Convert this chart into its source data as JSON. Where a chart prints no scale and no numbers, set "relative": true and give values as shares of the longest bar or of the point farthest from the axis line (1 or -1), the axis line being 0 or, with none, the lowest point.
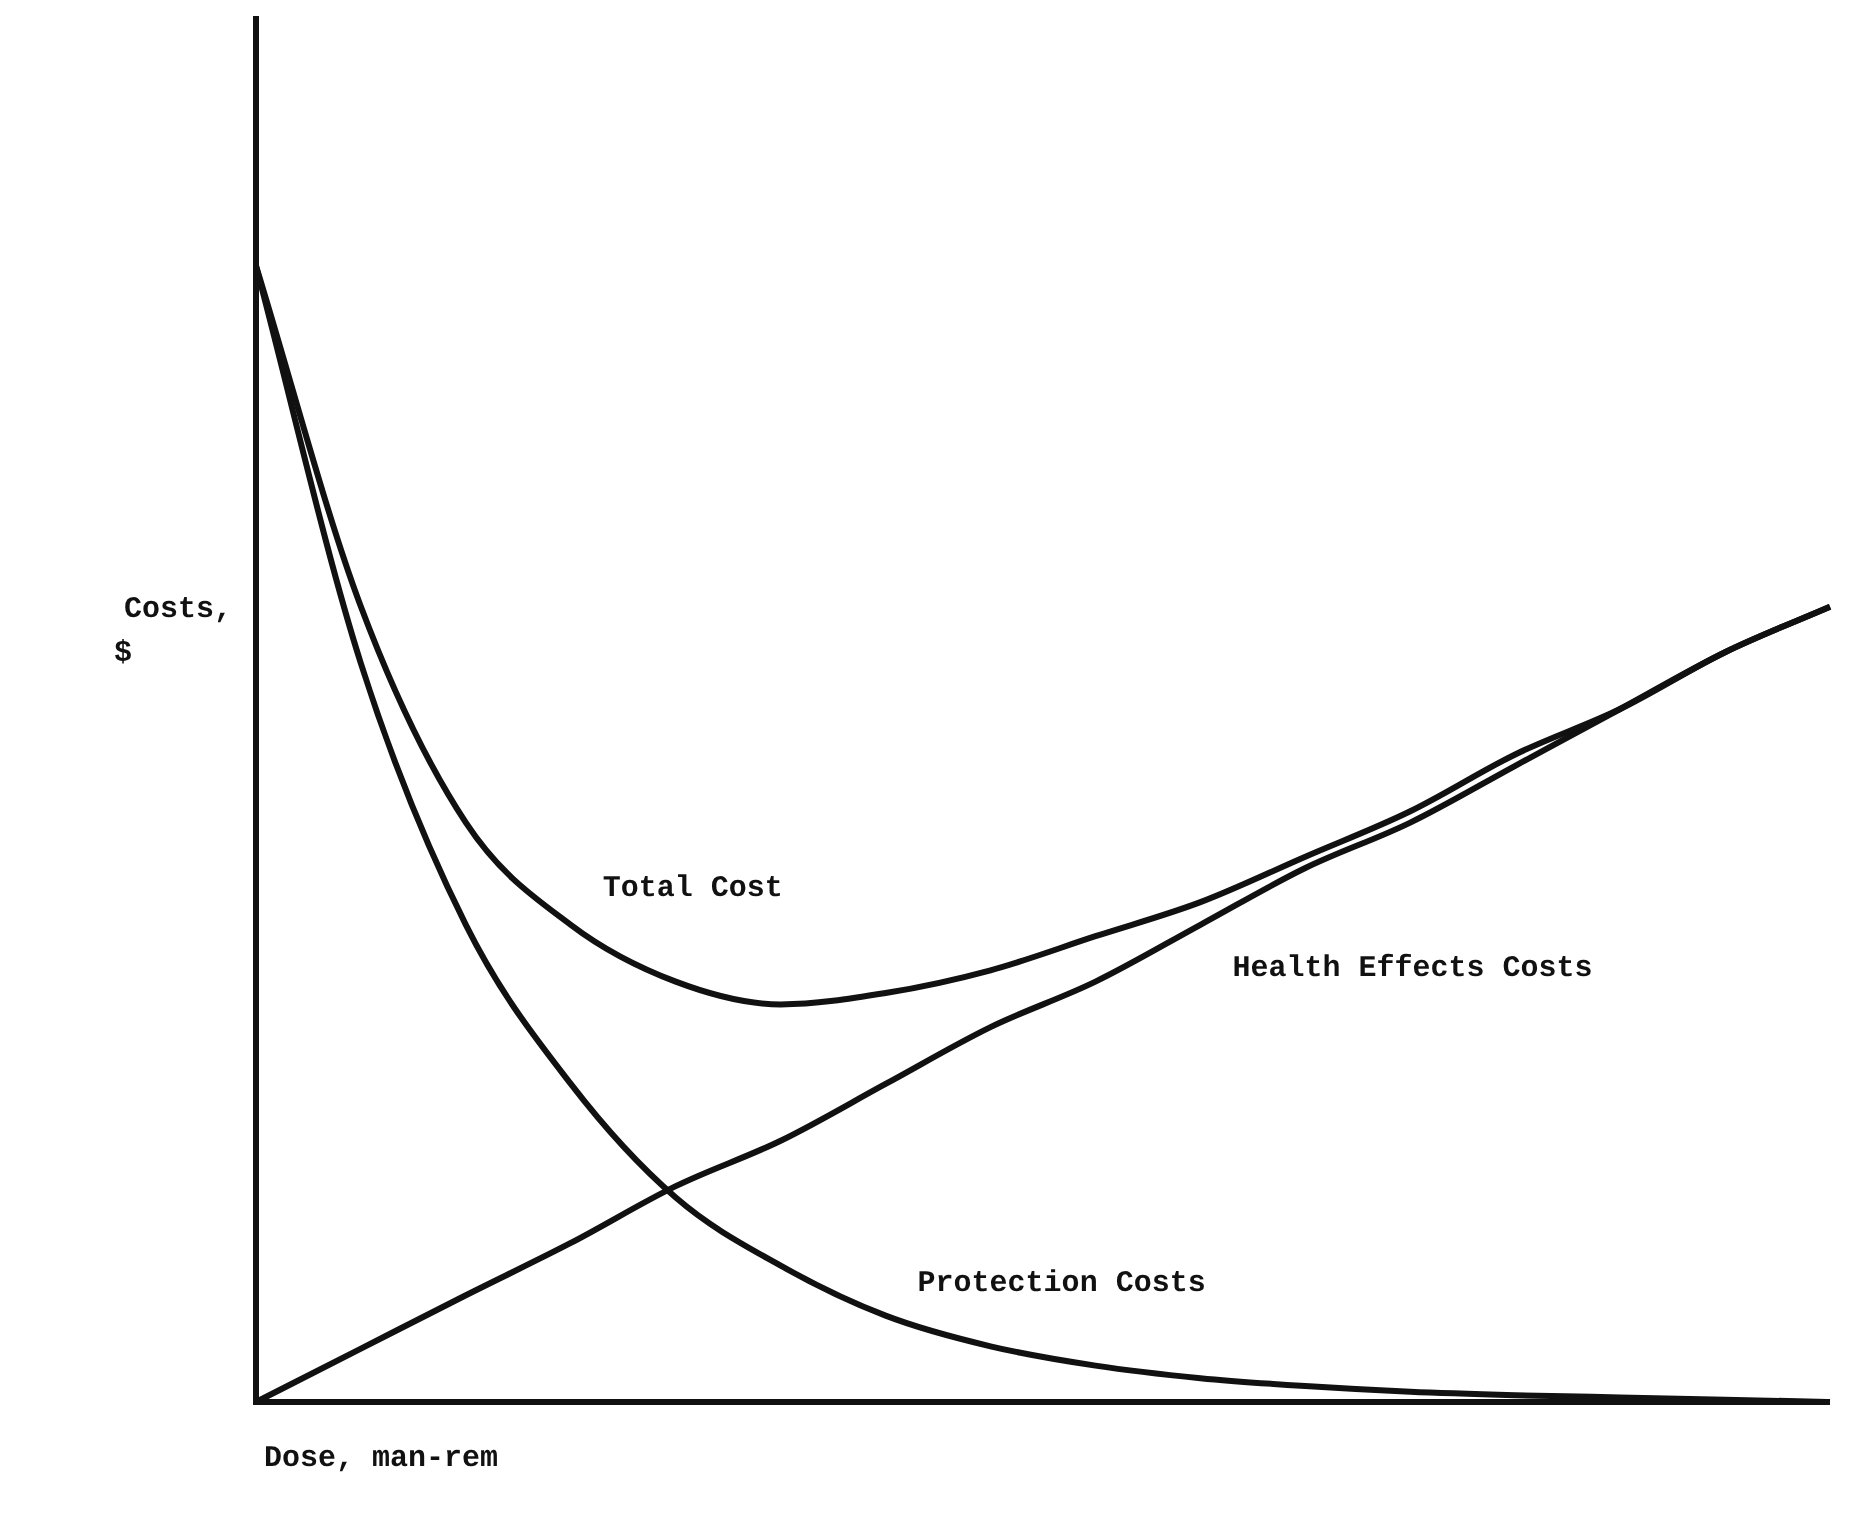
{
  "chart_data": {
    "type": "line",
    "relative": true,
    "xlabel": "Dose, man-rem",
    "ylabel": "Costs,\n$",
    "categories": [
      null,
      null,
      null,
      null,
      null,
      null,
      null,
      null,
      null,
      null,
      null,
      null,
      null,
      null,
      null,
      null
    ],
    "series": [
      {
        "name": "Total Cost",
        "color": "#111111",
        "values": [
          1.0,
          0.7,
          0.51,
          0.42,
          0.37,
          0.35,
          0.36,
          0.38,
          0.41,
          0.44,
          0.48,
          0.52,
          0.57,
          0.61,
          0.66,
          0.7
        ]
      },
      {
        "name": "Health Effects Costs",
        "color": "#111111",
        "values": [
          0,
          0.047,
          0.094,
          0.14,
          0.19,
          0.23,
          0.28,
          0.33,
          0.37,
          0.42,
          0.47,
          0.51,
          0.56,
          0.61,
          0.66,
          0.7
        ]
      },
      {
        "name": "Protection Costs",
        "color": "#111111",
        "values": [
          1.0,
          0.65,
          0.42,
          0.28,
          0.18,
          0.12,
          0.076,
          0.049,
          0.032,
          0.021,
          0.014,
          0.009,
          0.006,
          0.004,
          0.002,
          0
        ]
      }
    ],
    "marker": "none",
    "line_style": "solid"
  }
}
